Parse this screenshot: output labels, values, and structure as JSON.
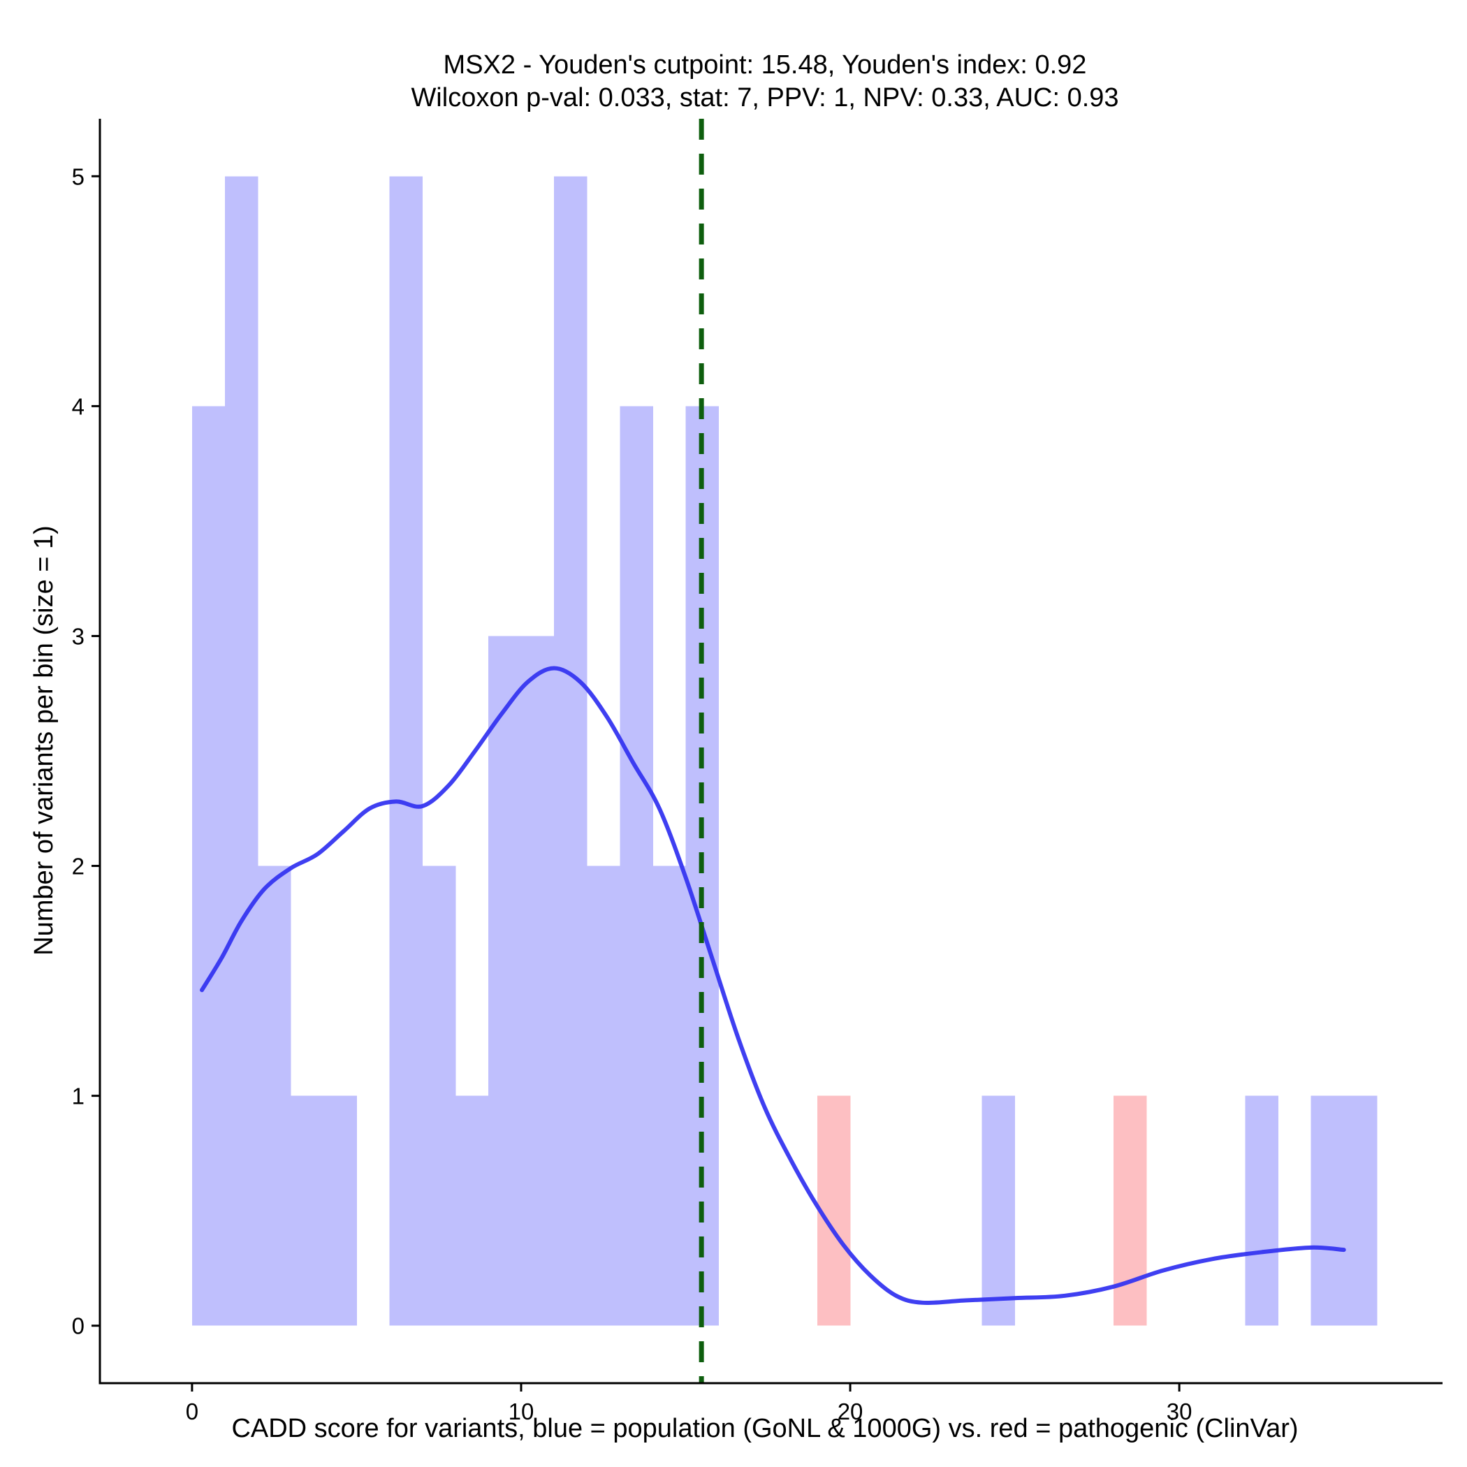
{
  "chart_data": {
    "type": "histogram",
    "title_line1": "MSX2 - Youden's cutpoint: 15.48, Youden's index: 0.92",
    "title_line2": "Wilcoxon p-val: 0.033, stat: 7, PPV: 1, NPV: 0.33, AUC: 0.93",
    "xlabel": "CADD score for variants, blue = population (GoNL & 1000G) vs. red = pathogenic (ClinVar)",
    "ylabel": "Number of variants per bin (size = 1)",
    "xlim": [
      -2.8,
      38.0
    ],
    "ylim": [
      -0.25,
      5.25
    ],
    "x_ticks": [
      0,
      10,
      20,
      30
    ],
    "y_ticks": [
      0,
      1,
      2,
      3,
      4,
      5
    ],
    "bin_size": 1,
    "series": [
      {
        "name": "population (GoNL & 1000G)",
        "color": "#bfbffd",
        "bins": [
          {
            "start": 0,
            "count": 4
          },
          {
            "start": 1,
            "count": 5
          },
          {
            "start": 2,
            "count": 2
          },
          {
            "start": 3,
            "count": 1
          },
          {
            "start": 4,
            "count": 1
          },
          {
            "start": 6,
            "count": 5
          },
          {
            "start": 7,
            "count": 2
          },
          {
            "start": 8,
            "count": 1
          },
          {
            "start": 9,
            "count": 3
          },
          {
            "start": 10,
            "count": 3
          },
          {
            "start": 11,
            "count": 5
          },
          {
            "start": 12,
            "count": 2
          },
          {
            "start": 13,
            "count": 4
          },
          {
            "start": 14,
            "count": 2
          },
          {
            "start": 15,
            "count": 4
          },
          {
            "start": 24,
            "count": 1
          },
          {
            "start": 32,
            "count": 1
          },
          {
            "start": 34,
            "count": 1
          },
          {
            "start": 35,
            "count": 1
          }
        ]
      },
      {
        "name": "pathogenic (ClinVar)",
        "color": "#fdbfc2",
        "bins": [
          {
            "start": 19,
            "count": 1
          },
          {
            "start": 28,
            "count": 1
          }
        ]
      }
    ],
    "density_curve": {
      "color": "#3535f0",
      "points": [
        [
          0.3,
          1.46
        ],
        [
          0.9,
          1.6
        ],
        [
          1.5,
          1.76
        ],
        [
          2.2,
          1.9
        ],
        [
          3.0,
          1.99
        ],
        [
          3.8,
          2.05
        ],
        [
          4.6,
          2.15
        ],
        [
          5.4,
          2.25
        ],
        [
          6.2,
          2.28
        ],
        [
          7.0,
          2.26
        ],
        [
          7.8,
          2.35
        ],
        [
          8.6,
          2.5
        ],
        [
          9.4,
          2.66
        ],
        [
          10.2,
          2.8
        ],
        [
          11.0,
          2.86
        ],
        [
          11.8,
          2.8
        ],
        [
          12.6,
          2.65
        ],
        [
          13.4,
          2.45
        ],
        [
          14.2,
          2.25
        ],
        [
          15.0,
          1.95
        ],
        [
          15.8,
          1.6
        ],
        [
          16.6,
          1.25
        ],
        [
          17.4,
          0.95
        ],
        [
          18.2,
          0.72
        ],
        [
          19.0,
          0.52
        ],
        [
          19.8,
          0.35
        ],
        [
          20.6,
          0.22
        ],
        [
          21.4,
          0.13
        ],
        [
          22.2,
          0.1
        ],
        [
          23.5,
          0.11
        ],
        [
          25.0,
          0.12
        ],
        [
          26.5,
          0.13
        ],
        [
          28.0,
          0.17
        ],
        [
          29.5,
          0.24
        ],
        [
          31.0,
          0.29
        ],
        [
          32.5,
          0.32
        ],
        [
          34.0,
          0.34
        ],
        [
          35.0,
          0.33
        ]
      ]
    },
    "cutpoint": {
      "x": 15.48,
      "color": "#0e5e0e",
      "style": "dashed"
    }
  }
}
